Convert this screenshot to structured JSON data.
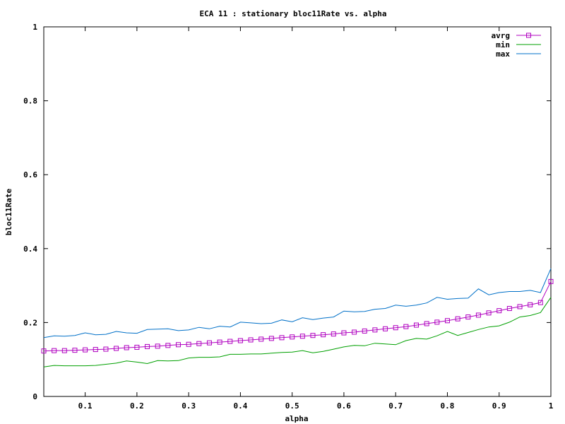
{
  "chart_data": {
    "type": "line",
    "title": "ECA 11 : stationary bloc11Rate vs. alpha",
    "xlabel": "alpha",
    "ylabel": "bloc11Rate",
    "xlim": [
      0.02,
      1.0
    ],
    "ylim": [
      0,
      1
    ],
    "xticks": [
      0.1,
      0.2,
      0.3,
      0.4,
      0.5,
      0.6,
      0.7,
      0.8,
      0.9,
      1
    ],
    "xtick_labels": [
      "0.1",
      "0.2",
      "0.3",
      "0.4",
      "0.5",
      "0.6",
      "0.7",
      "0.8",
      "0.9",
      "1"
    ],
    "yticks": [
      0,
      0.2,
      0.4,
      0.6,
      0.8,
      1
    ],
    "ytick_labels": [
      "0",
      "0.2",
      "0.4",
      "0.6",
      "0.8",
      "1"
    ],
    "legend_position": "top-right",
    "x": [
      0.02,
      0.04,
      0.06,
      0.08,
      0.1,
      0.12,
      0.14,
      0.16,
      0.18,
      0.2,
      0.22,
      0.24,
      0.26,
      0.28,
      0.3,
      0.32,
      0.34,
      0.36,
      0.38,
      0.4,
      0.42,
      0.44,
      0.46,
      0.48,
      0.5,
      0.52,
      0.54,
      0.56,
      0.58,
      0.6,
      0.62,
      0.64,
      0.66,
      0.68,
      0.7,
      0.72,
      0.74,
      0.76,
      0.78,
      0.8,
      0.82,
      0.84,
      0.86,
      0.88,
      0.9,
      0.92,
      0.94,
      0.96,
      0.98,
      1.0
    ],
    "series": [
      {
        "name": "avrg",
        "color": "#b000c0",
        "marker": "square",
        "values": [
          0.123,
          0.124,
          0.124,
          0.125,
          0.126,
          0.127,
          0.128,
          0.13,
          0.132,
          0.133,
          0.135,
          0.136,
          0.138,
          0.14,
          0.141,
          0.143,
          0.145,
          0.147,
          0.149,
          0.151,
          0.153,
          0.155,
          0.157,
          0.159,
          0.161,
          0.163,
          0.165,
          0.167,
          0.169,
          0.172,
          0.174,
          0.177,
          0.18,
          0.183,
          0.186,
          0.189,
          0.193,
          0.197,
          0.201,
          0.205,
          0.21,
          0.215,
          0.22,
          0.226,
          0.232,
          0.238,
          0.243,
          0.248,
          0.254,
          0.311
        ]
      },
      {
        "name": "min",
        "color": "#00a000",
        "values": [
          0.08,
          0.084,
          0.083,
          0.083,
          0.083,
          0.084,
          0.087,
          0.09,
          0.096,
          0.093,
          0.089,
          0.097,
          0.096,
          0.097,
          0.104,
          0.106,
          0.106,
          0.107,
          0.114,
          0.114,
          0.115,
          0.115,
          0.117,
          0.119,
          0.12,
          0.124,
          0.118,
          0.122,
          0.128,
          0.134,
          0.138,
          0.137,
          0.144,
          0.142,
          0.14,
          0.151,
          0.157,
          0.155,
          0.164,
          0.176,
          0.165,
          0.173,
          0.181,
          0.188,
          0.191,
          0.201,
          0.215,
          0.219,
          0.227,
          0.268
        ]
      },
      {
        "name": "max",
        "color": "#0070c8",
        "values": [
          0.159,
          0.164,
          0.163,
          0.165,
          0.172,
          0.167,
          0.168,
          0.176,
          0.172,
          0.171,
          0.181,
          0.182,
          0.183,
          0.178,
          0.18,
          0.187,
          0.183,
          0.19,
          0.188,
          0.201,
          0.199,
          0.197,
          0.198,
          0.207,
          0.202,
          0.213,
          0.208,
          0.212,
          0.215,
          0.231,
          0.229,
          0.23,
          0.236,
          0.238,
          0.247,
          0.244,
          0.247,
          0.253,
          0.268,
          0.263,
          0.265,
          0.266,
          0.291,
          0.275,
          0.281,
          0.284,
          0.284,
          0.287,
          0.281,
          0.346
        ]
      }
    ]
  }
}
